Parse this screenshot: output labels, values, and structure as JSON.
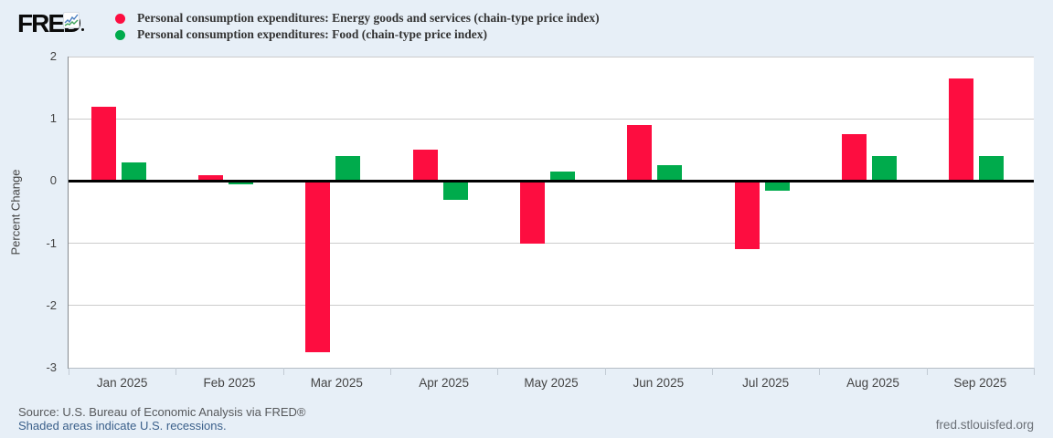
{
  "header": {
    "logo_text": "FRED",
    "legend": [
      {
        "label": "Personal consumption expenditures: Energy goods and services (chain-type price index)",
        "color": "#fd0d40"
      },
      {
        "label": "Personal consumption expenditures: Food (chain-type price index)",
        "color": "#00ab4c"
      }
    ]
  },
  "chart_data": {
    "type": "bar",
    "categories": [
      "Jan 2025",
      "Feb 2025",
      "Mar 2025",
      "Apr 2025",
      "May 2025",
      "Jun 2025",
      "Jul 2025",
      "Aug 2025",
      "Sep 2025"
    ],
    "series": [
      {
        "name": "Personal consumption expenditures: Energy goods and services (chain-type price index)",
        "color": "#fd0d40",
        "values": [
          1.2,
          0.1,
          -2.75,
          0.5,
          -1.0,
          0.9,
          -1.1,
          0.75,
          1.65
        ]
      },
      {
        "name": "Personal consumption expenditures: Food (chain-type price index)",
        "color": "#00ab4c",
        "values": [
          0.3,
          -0.05,
          0.4,
          -0.3,
          0.15,
          0.25,
          -0.15,
          0.4,
          0.4
        ]
      }
    ],
    "title": "",
    "xlabel": "",
    "ylabel": "Percent Change",
    "ylim": [
      -3,
      2
    ],
    "yticks": [
      2,
      1,
      0,
      -1,
      -2,
      -3
    ],
    "grid": true,
    "legend_position": "top"
  },
  "footer": {
    "source": "Source: U.S. Bureau of Economic Analysis via FRED®",
    "recession_note": "Shaded areas indicate U.S. recessions.",
    "site_link": "fred.stlouisfed.org"
  },
  "colors": {
    "background": "#e7eff7",
    "plot_background": "#ffffff",
    "gridline": "#cccccc",
    "zero_line": "#000000",
    "axis_text": "#444444",
    "energy_bar": "#fd0d40",
    "food_bar": "#00ab4c",
    "link_blue": "#3a5f8a"
  }
}
